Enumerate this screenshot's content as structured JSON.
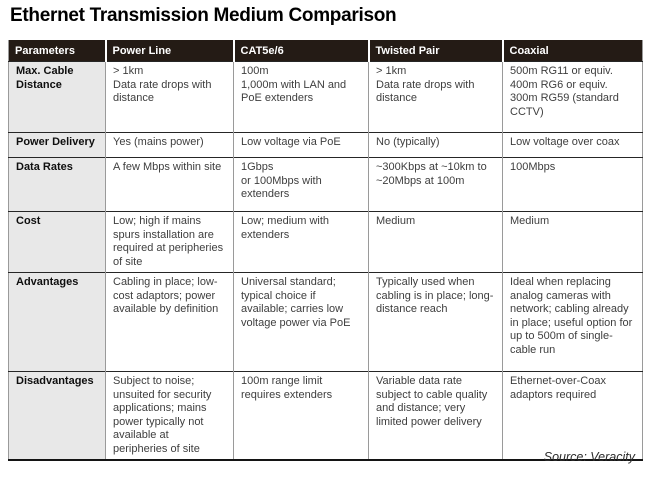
{
  "title": "Ethernet Transmission Medium Comparison",
  "source_credit": "Source: Veracity",
  "colors": {
    "header_background": "#241b15",
    "header_text": "#ffffff",
    "parameter_column_background": "#e8e8e8",
    "body_text": "#3e3e3e",
    "row_divider": "#262626",
    "column_divider": "#9a9a9a"
  },
  "table": {
    "columns": [
      "Parameters",
      "Power Line",
      "CAT5e/6",
      "Twisted Pair",
      "Coaxial"
    ],
    "rows": [
      {
        "param": "Max. Cable Distance",
        "cells": [
          "> 1km\nData rate drops with distance",
          "100m\n1,000m with LAN and PoE extenders",
          "> 1km\nData rate drops with distance",
          "500m RG11 or equiv.\n400m RG6 or equiv.\n300m RG59 (standard CCTV)"
        ]
      },
      {
        "param": "Power Delivery",
        "cells": [
          "Yes (mains power)",
          "Low voltage via PoE",
          "No (typically)",
          "Low voltage over coax"
        ]
      },
      {
        "param": "Data Rates",
        "cells": [
          "A few Mbps within site",
          "1Gbps\nor 100Mbps with extenders",
          "~300Kbps at ~10km to ~20Mbps at 100m",
          "100Mbps"
        ]
      },
      {
        "param": "Cost",
        "cells": [
          "Low; high if mains spurs installation are required at peripheries of site",
          "Low; medium with extenders",
          "Medium",
          "Medium"
        ]
      },
      {
        "param": "Advantages",
        "cells": [
          "Cabling in place; low-cost adaptors; power available by definition",
          "Universal standard; typical choice if available; carries low voltage power via PoE",
          "Typically used when cabling is in place; long-distance reach",
          "Ideal when replacing analog cameras with network; cabling already in place; useful option for up to 500m of single-cable run"
        ]
      },
      {
        "param": "Disadvantages",
        "cells": [
          "Subject to noise; unsuited for security applications; mains power typically not available at peripheries of site",
          "100m range limit requires extenders",
          "Variable data rate subject to cable quality and distance; very limited power delivery",
          "Ethernet-over-Coax adaptors required"
        ]
      }
    ]
  }
}
